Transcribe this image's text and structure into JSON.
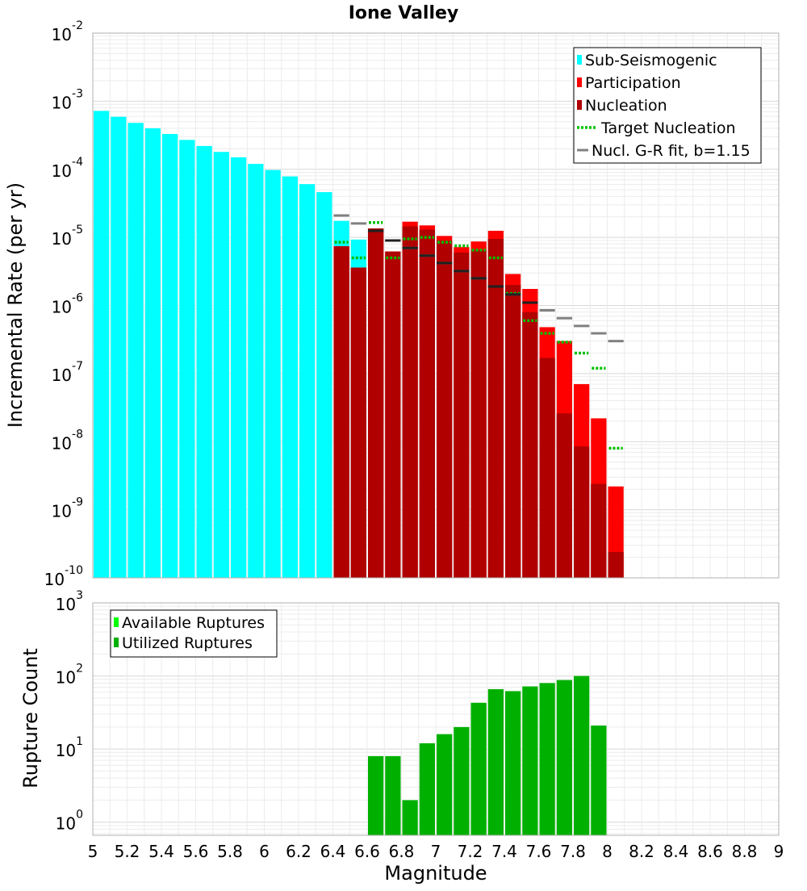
{
  "chart_data": {
    "title": "Ione Valley",
    "xlabel": "Magnitude",
    "xlim": [
      5,
      9
    ],
    "xticks": [
      "5",
      "5.2",
      "5.4",
      "5.6",
      "5.8",
      "6",
      "6.2",
      "6.4",
      "6.6",
      "6.8",
      "7",
      "7.2",
      "7.4",
      "7.6",
      "7.8",
      "8",
      "8.2",
      "8.4",
      "8.6",
      "8.8",
      "9"
    ],
    "bin_width": 0.1,
    "panels": [
      {
        "type": "bar",
        "yscale": "log",
        "ylabel": "Incremental Rate (per yr)",
        "ylim_exp": [
          -10,
          -2
        ],
        "ytick_labels": [
          {
            "base": "10",
            "exp": "-2"
          },
          {
            "base": "10",
            "exp": "-3"
          },
          {
            "base": "10",
            "exp": "-4"
          },
          {
            "base": "10",
            "exp": "-5"
          },
          {
            "base": "10",
            "exp": "-6"
          },
          {
            "base": "10",
            "exp": "-7"
          },
          {
            "base": "10",
            "exp": "-8"
          },
          {
            "base": "10",
            "exp": "-9"
          },
          {
            "base": "10",
            "exp": "-10"
          }
        ],
        "legend": [
          {
            "label": "Sub-Seismogenic",
            "style": "bar",
            "color": "#00ffff"
          },
          {
            "label": "Participation",
            "style": "bar",
            "color": "#ff0000"
          },
          {
            "label": "Nucleation",
            "style": "bar",
            "color": "#b00000"
          },
          {
            "label": "Target Nucleation",
            "style": "dotted",
            "color": "#00c000"
          },
          {
            "label": "Nucl. G-R fit, b=1.15",
            "style": "line",
            "color": "#808080"
          }
        ],
        "series": [
          {
            "name": "Sub-Seismogenic",
            "color": "#00ffff",
            "x": [
              5.05,
              5.15,
              5.25,
              5.35,
              5.45,
              5.55,
              5.65,
              5.75,
              5.85,
              5.95,
              6.05,
              6.15,
              6.25,
              6.35,
              6.45,
              6.55
            ],
            "values": [
              0.00072,
              0.00059,
              0.00048,
              0.0004,
              0.00033,
              0.00027,
              0.00022,
              0.00018,
              0.00015,
              0.00012,
              9.75e-05,
              7.85e-05,
              6.05e-05,
              4.62e-05,
              1.75e-05,
              9.3e-06
            ]
          },
          {
            "name": "Participation",
            "color": "#ff0000",
            "x": [
              6.45,
              6.55,
              6.65,
              6.75,
              6.85,
              6.95,
              7.05,
              7.15,
              7.25,
              7.35,
              7.45,
              7.55,
              7.65,
              7.75,
              7.85,
              7.95,
              8.05
            ],
            "values": [
              7.4e-06,
              3.6e-06,
              1.35e-05,
              6.2e-06,
              1.7e-05,
              1.5e-05,
              1.05e-05,
              7.2e-06,
              8.7e-06,
              1.25e-05,
              2.9e-06,
              1.75e-06,
              4.8e-07,
              3e-07,
              7e-08,
              2.2e-08,
              2.2e-09
            ]
          },
          {
            "name": "Nucleation",
            "color": "#b00000",
            "x": [
              6.45,
              6.55,
              6.65,
              6.75,
              6.85,
              6.95,
              7.05,
              7.15,
              7.25,
              7.35,
              7.45,
              7.55,
              7.65,
              7.75,
              7.85,
              7.95,
              8.05
            ],
            "values": [
              7.4e-06,
              3.6e-06,
              1.35e-05,
              6.2e-06,
              1.45e-05,
              1.3e-05,
              9e-06,
              6e-06,
              6.5e-06,
              9.5e-06,
              2e-06,
              8e-07,
              1.7e-07,
              2.6e-08,
              8.5e-09,
              2.4e-09,
              2.4e-10
            ]
          },
          {
            "name": "Target Nucleation",
            "color": "#00c000",
            "x": [
              6.45,
              6.55,
              6.65,
              6.75,
              6.85,
              6.95,
              7.05,
              7.15,
              7.25,
              7.35,
              7.45,
              7.55,
              7.65,
              7.75,
              7.85,
              7.95,
              8.05
            ],
            "values": [
              8.5e-06,
              5e-06,
              1.65e-05,
              5e-06,
              9.5e-06,
              1e-05,
              8.5e-06,
              7.5e-06,
              6.5e-06,
              5e-06,
              1.5e-06,
              6e-07,
              3.9e-07,
              2.9e-07,
              2e-07,
              1.2e-07,
              8e-09
            ]
          },
          {
            "name": "Nucl. G-R fit, b=1.15",
            "color": "#808080",
            "x": [
              6.45,
              6.55,
              6.65,
              6.75,
              6.85,
              6.95,
              7.05,
              7.15,
              7.25,
              7.35,
              7.45,
              7.55,
              7.65,
              7.75,
              7.85,
              7.95,
              8.05
            ],
            "values": [
              2.1e-05,
              1.6e-05,
              1.25e-05,
              9e-06,
              7e-06,
              5.4e-06,
              4.2e-06,
              3.2e-06,
              2.5e-06,
              1.9e-06,
              1.45e-06,
              1.1e-06,
              8.5e-07,
              6.5e-07,
              5e-07,
              3.9e-07,
              3e-07
            ]
          },
          {
            "name": "Nucl. G-R fit overlay",
            "color": "#202020",
            "x": [
              6.65,
              6.75,
              6.85,
              6.95,
              7.05,
              7.15,
              7.25,
              7.35,
              7.45,
              7.55
            ],
            "values": [
              1.25e-05,
              9e-06,
              7e-06,
              5.4e-06,
              4.2e-06,
              3.2e-06,
              2.5e-06,
              1.9e-06,
              1.45e-06,
              1.1e-06
            ]
          }
        ]
      },
      {
        "type": "bar",
        "yscale": "log",
        "ylabel": "Rupture Count",
        "ylim_exp": [
          -0.18,
          3
        ],
        "ytick_labels": [
          {
            "base": "10",
            "exp": "3"
          },
          {
            "base": "10",
            "exp": "2"
          },
          {
            "base": "10",
            "exp": "1"
          },
          {
            "base": "10",
            "exp": "0"
          }
        ],
        "legend": [
          {
            "label": "Available Ruptures",
            "style": "bar",
            "color": "#00ff00"
          },
          {
            "label": "Utilized Ruptures",
            "style": "bar",
            "color": "#00b000"
          }
        ],
        "series": [
          {
            "name": "Utilized Ruptures",
            "color": "#00b000",
            "x": [
              6.65,
              6.75,
              6.85,
              6.95,
              7.05,
              7.15,
              7.25,
              7.35,
              7.45,
              7.55,
              7.65,
              7.75,
              7.85,
              7.95
            ],
            "values": [
              8,
              8,
              2,
              12,
              16,
              20,
              43,
              66,
              62,
              72,
              80,
              88,
              100,
              21
            ]
          }
        ]
      }
    ]
  }
}
